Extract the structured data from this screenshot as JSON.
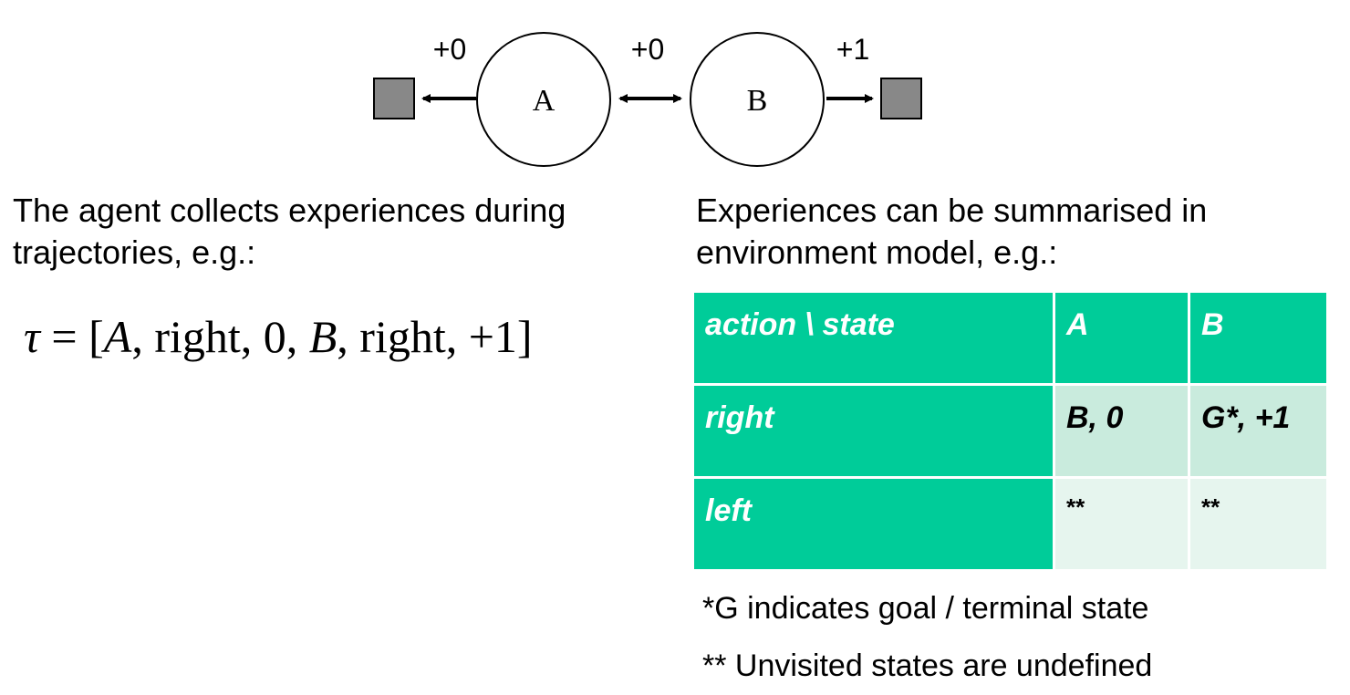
{
  "diagram": {
    "state_a": "A",
    "state_b": "B",
    "reward_left": "+0",
    "reward_middle": "+0",
    "reward_right": "+1"
  },
  "left_text": {
    "line1": "The agent collects experiences during",
    "line2": "trajectories, e.g.:"
  },
  "formula": {
    "tau": "τ",
    "equals": " = [",
    "a": "A",
    "p1": ", right, 0, ",
    "b": "B",
    "p2": ", right, +1]"
  },
  "right_text": {
    "line1": "Experiences can be summarised in",
    "line2": "environment model, e.g.:"
  },
  "table": {
    "header": [
      "action \\ state",
      "A",
      "B"
    ],
    "rows": [
      {
        "action": "right",
        "A": "B, 0",
        "B": "G*, +1"
      },
      {
        "action": "left",
        "A": "**",
        "B": "**"
      }
    ]
  },
  "notes": {
    "goal": "*G indicates goal / terminal state",
    "unvisited": "** Unvisited states are undefined"
  },
  "colors": {
    "header_green": "#00cc99",
    "cell_mid": "#c9ebdd",
    "cell_light": "#e6f5ee",
    "terminal_gray": "#888888"
  }
}
